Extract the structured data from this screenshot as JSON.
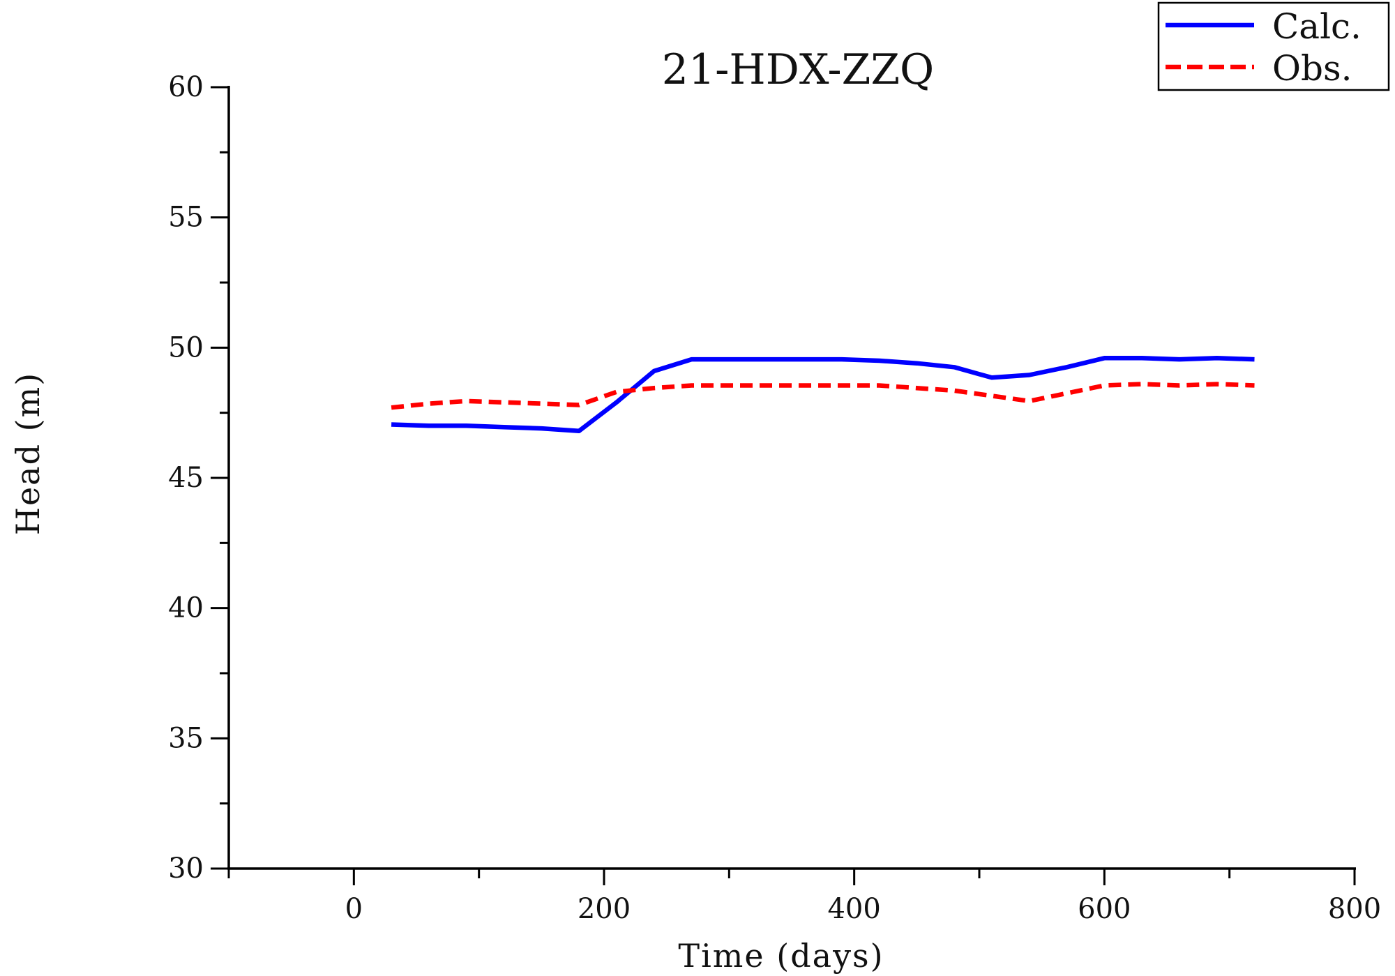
{
  "chart_data": {
    "type": "line",
    "title": "21-HDX-ZZQ",
    "xlabel": "Time (days)",
    "ylabel": "Head (m)",
    "xlim": [
      -100,
      800
    ],
    "ylim": [
      30,
      60
    ],
    "xticks": [
      0,
      200,
      400,
      600,
      800
    ],
    "yticks": [
      30,
      35,
      40,
      45,
      50,
      55,
      60
    ],
    "grid": false,
    "legend_position": "top-right",
    "x": [
      30,
      60,
      90,
      120,
      150,
      180,
      210,
      240,
      270,
      300,
      330,
      360,
      390,
      420,
      450,
      480,
      510,
      540,
      570,
      600,
      630,
      660,
      690,
      720
    ],
    "series": [
      {
        "name": "Calc.",
        "color": "#0000ff",
        "style": "solid",
        "values": [
          47.05,
          47.0,
          47.0,
          46.95,
          46.9,
          46.8,
          47.9,
          49.1,
          49.55,
          49.55,
          49.55,
          49.55,
          49.55,
          49.5,
          49.4,
          49.25,
          48.85,
          48.95,
          49.25,
          49.6,
          49.6,
          49.55,
          49.6,
          49.55
        ]
      },
      {
        "name": "Obs.",
        "color": "#ff0000",
        "style": "dashed",
        "values": [
          47.7,
          47.85,
          47.95,
          47.9,
          47.85,
          47.8,
          48.3,
          48.45,
          48.55,
          48.55,
          48.55,
          48.55,
          48.55,
          48.55,
          48.45,
          48.35,
          48.15,
          47.95,
          48.25,
          48.55,
          48.6,
          48.55,
          48.6,
          48.55
        ]
      }
    ]
  }
}
